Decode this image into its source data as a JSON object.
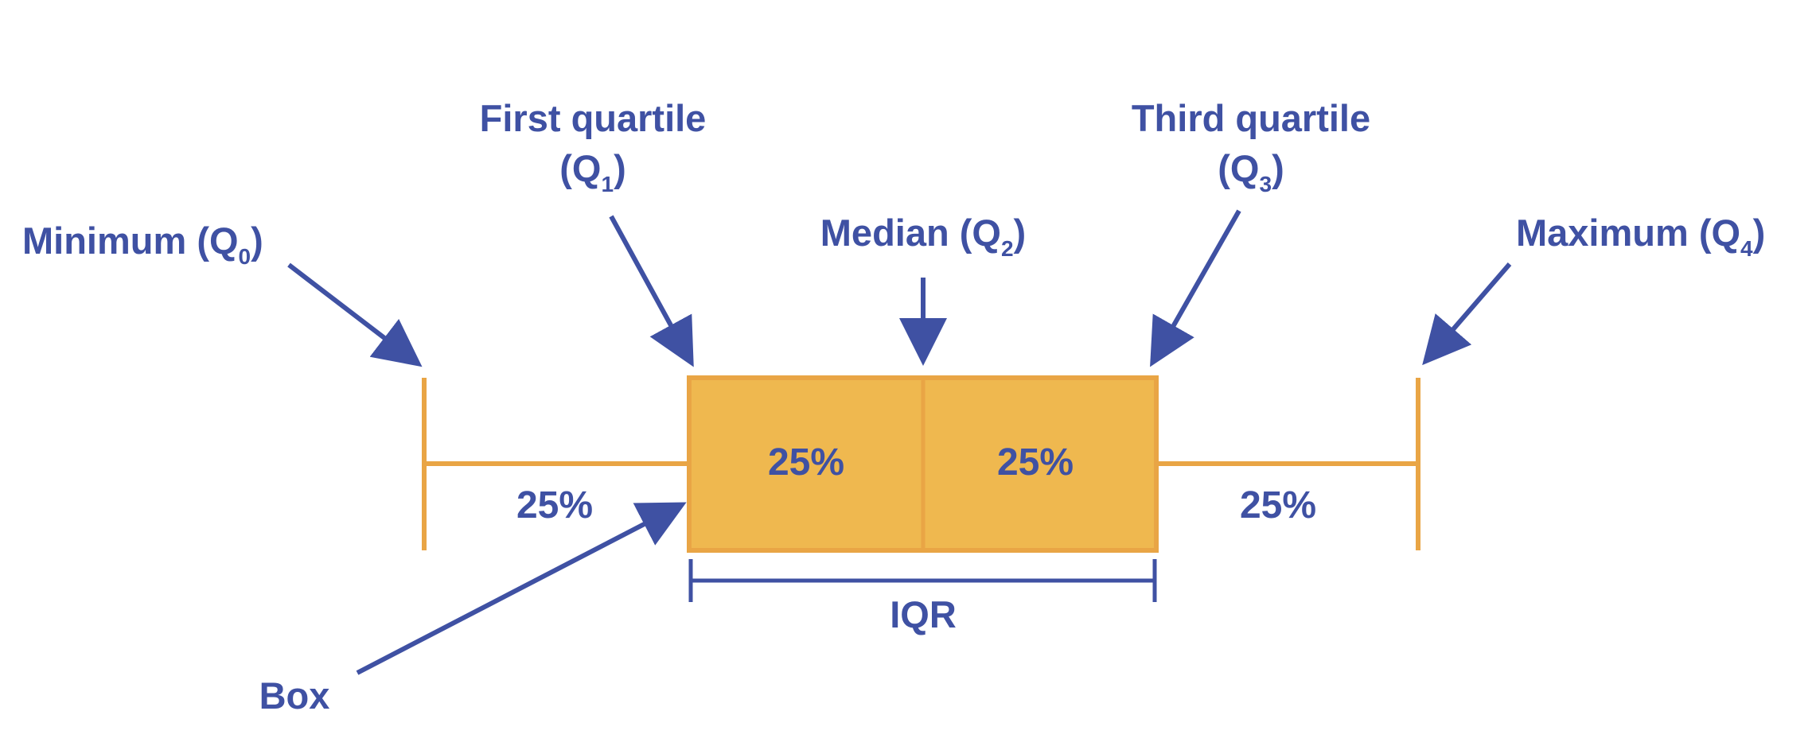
{
  "labels": {
    "minimum": {
      "text": "Minimum (Q",
      "sub": "0",
      "close": ")"
    },
    "first_quartile": {
      "line1": "First quartile",
      "line2_open": "(Q",
      "sub": "1",
      "close": ")"
    },
    "median": {
      "text": "Median (Q",
      "sub": "2",
      "close": ")"
    },
    "third_quartile": {
      "line1": "Third quartile",
      "line2_open": "(Q",
      "sub": "3",
      "close": ")"
    },
    "maximum": {
      "text": "Maximum (Q",
      "sub": "4",
      "close": ")"
    },
    "box": "Box",
    "iqr": "IQR"
  },
  "percentages": {
    "lower_whisker": "25%",
    "lower_box": "25%",
    "upper_box": "25%",
    "upper_whisker": "25%"
  },
  "colors": {
    "text": "#3F51A3",
    "arrow": "#3F51A3",
    "box_fill": "#EFB84F",
    "box_stroke": "#E9A545",
    "whisker": "#E9A545"
  }
}
